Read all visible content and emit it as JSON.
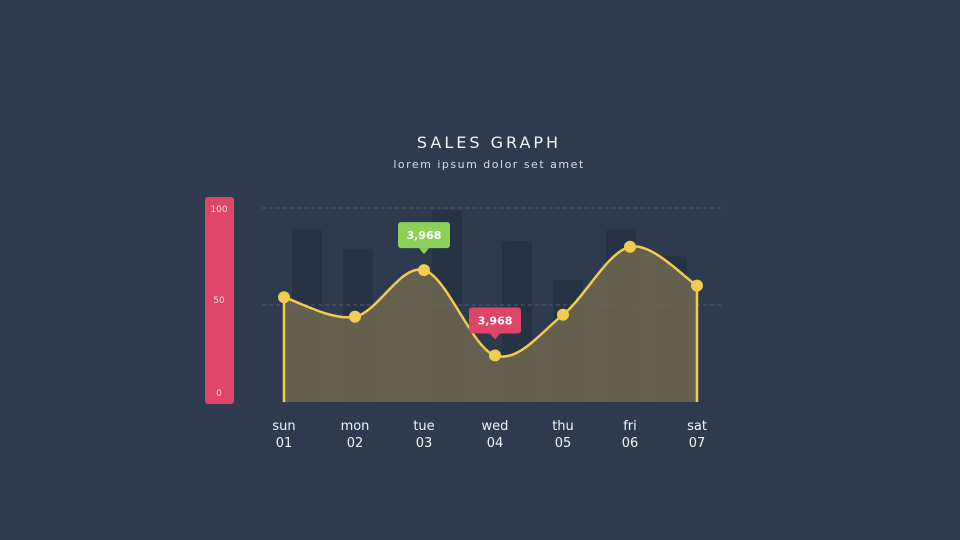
{
  "chart": {
    "title": "SALES GRAPH",
    "subtitle": "lorem ipsum dolor set amet"
  },
  "colors": {
    "background": "#2e3b4e",
    "axis_bar": "#de4566",
    "line": "#f2cc50",
    "fill": "#6e6850",
    "bars": "#263345",
    "callout_green": "#8cd05a",
    "callout_red": "#de4566"
  },
  "chart_data": {
    "type": "area",
    "ylim": [
      0,
      100
    ],
    "yticks": [
      "100",
      "50",
      "0"
    ],
    "x_days": [
      "sun",
      "mon",
      "tue",
      "wed",
      "thu",
      "fri",
      "sat"
    ],
    "x_dates": [
      "01",
      "02",
      "03",
      "04",
      "05",
      "06",
      "07"
    ],
    "line_values": [
      54,
      44,
      68,
      24,
      45,
      80,
      60
    ],
    "background_bars": [
      89,
      79,
      99,
      83,
      63,
      89,
      75
    ],
    "callouts": [
      {
        "label": "3,968",
        "index": 2,
        "color": "green",
        "position": "above"
      },
      {
        "label": "3,968",
        "index": 3,
        "color": "red",
        "position": "above"
      }
    ],
    "grid": "dashed horizontal lines at 50 and 100"
  }
}
